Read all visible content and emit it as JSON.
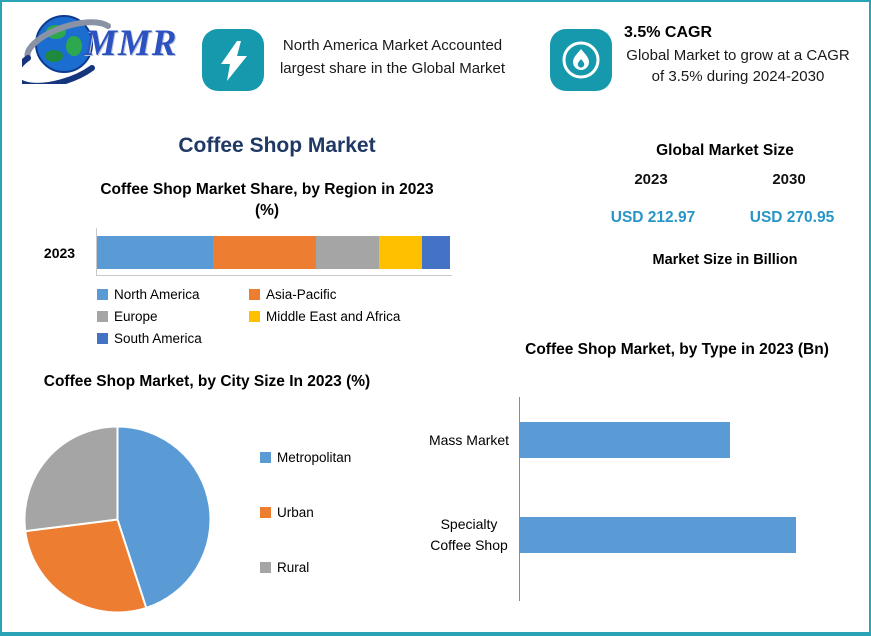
{
  "colors": {
    "accent_teal": "#1699ad",
    "border_teal": "#2ba3b7",
    "navy_title": "#1f3864",
    "value_blue": "#2795c8",
    "bar_blue": "#5b9bd5"
  },
  "logo": {
    "text": "MMR",
    "icon": "globe-orbit-icon"
  },
  "header": {
    "highlight_share": {
      "icon": "lightning-icon",
      "text": "North America Market Accounted largest share in the Global Market"
    },
    "highlight_cagr": {
      "icon": "flame-icon",
      "title": "3.5% CAGR",
      "text": "Global Market to grow at a CAGR of 3.5% during 2024-2030"
    }
  },
  "page_title": "Coffee Shop Market",
  "market_size": {
    "title": "Global Market Size",
    "year_start": "2023",
    "year_end": "2030",
    "value_start": "USD 212.97",
    "value_end": "USD 270.95",
    "note": "Market Size in Billion"
  },
  "chart_data": [
    {
      "type": "bar",
      "subtype": "stacked-horizontal",
      "title": "Coffee Shop Market Share, by Region in 2023 (%)",
      "categories": [
        "2023"
      ],
      "xlim": [
        0,
        100
      ],
      "legend_position": "bottom",
      "series": [
        {
          "name": "North America",
          "color": "#5b9bd5",
          "values": [
            33
          ]
        },
        {
          "name": "Asia-Pacific",
          "color": "#ed7d31",
          "values": [
            29
          ]
        },
        {
          "name": "Europe",
          "color": "#a5a5a5",
          "values": [
            18
          ]
        },
        {
          "name": "Middle East and Africa",
          "color": "#ffc000",
          "values": [
            12
          ]
        },
        {
          "name": "South America",
          "color": "#4472c4",
          "values": [
            8
          ]
        }
      ]
    },
    {
      "type": "pie",
      "title": "Coffee Shop Market, by City Size In 2023 (%)",
      "labels": [
        "Metropolitan",
        "Urban",
        "Rural"
      ],
      "values": [
        45,
        28,
        27
      ],
      "colors": [
        "#5b9bd5",
        "#ed7d31",
        "#a5a5a5"
      ],
      "legend_position": "right"
    },
    {
      "type": "bar",
      "subtype": "horizontal",
      "title": "Coffee Shop Market, by Type in 2023 (Bn)",
      "categories": [
        "Mass Market",
        "Specialty Coffee Shop"
      ],
      "values": [
        92,
        121
      ],
      "xlim": [
        0,
        150
      ],
      "color": "#5b9bd5"
    }
  ]
}
